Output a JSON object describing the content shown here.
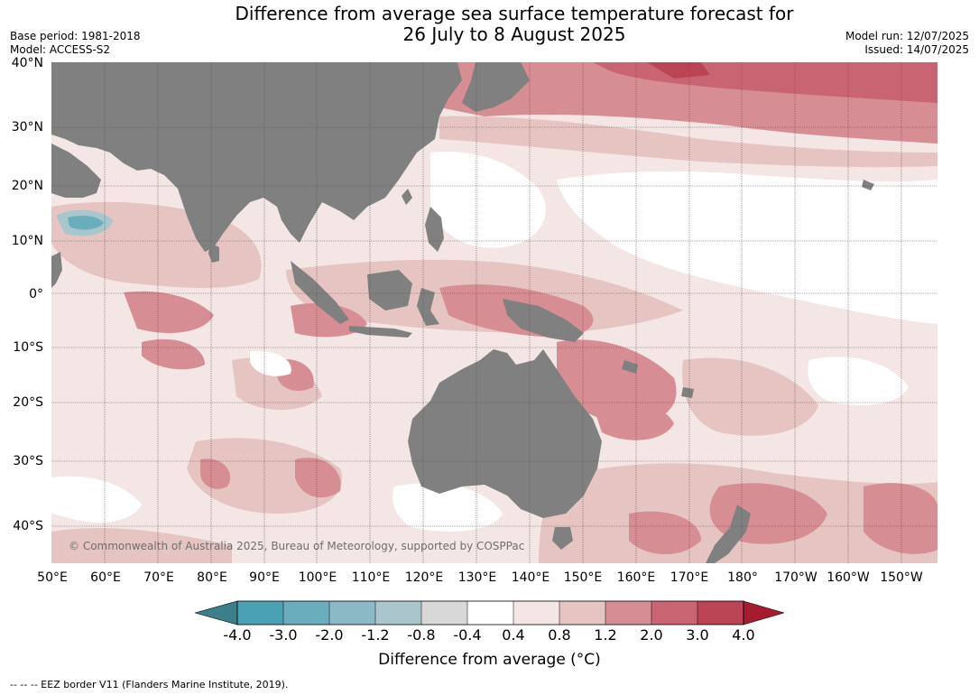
{
  "header": {
    "title_line1": "Difference from average sea surface temperature forecast for",
    "title_line2": "26 July to 8 August 2025",
    "base_period": "Base period: 1981-2018",
    "model": "Model: ACCESS-S2",
    "model_run": "Model run: 12/07/2025",
    "issued": "Issued: 14/07/2025"
  },
  "map": {
    "lat_labels": [
      "40°N",
      "30°N",
      "20°N",
      "10°N",
      "0°",
      "10°S",
      "20°S",
      "30°S",
      "40°S"
    ],
    "lon_labels": [
      "50°E",
      "60°E",
      "70°E",
      "80°E",
      "90°E",
      "100°E",
      "110°E",
      "120°E",
      "130°E",
      "140°E",
      "150°E",
      "160°E",
      "170°E",
      "180°",
      "170°W",
      "160°W",
      "150°W"
    ],
    "copyright": "© Commonwealth of Australia 2025, Bureau of Meteorology, supported by COSPPac",
    "colors": {
      "land": "#808080",
      "ocean_neutral": "#ffffff",
      "warm_1": "#f4e6e5",
      "warm_2": "#e6c4c2",
      "warm_3": "#d78d94",
      "warm_4": "#c96472",
      "warm_5": "#bb4454",
      "cool_1": "#a8c6cc",
      "cool_2": "#6aaebd"
    }
  },
  "colorbar": {
    "ticks": [
      "-4.0",
      "-3.0",
      "-2.0",
      "-1.2",
      "-0.8",
      "-0.4",
      "0.4",
      "0.8",
      "1.2",
      "2.0",
      "3.0",
      "4.0"
    ],
    "colors": [
      "#4aa1b3",
      "#6aaebd",
      "#8bb9c6",
      "#aac6cc",
      "#d8d8d8",
      "#ffffff",
      "#f4e6e5",
      "#e6c4c2",
      "#d78d94",
      "#c96472",
      "#bb4454"
    ],
    "low_extend_color": "#3b7f8a",
    "high_extend_color": "#a51c30",
    "label": "Difference from average (°C)"
  },
  "footnote": "--  --  -- EEZ border V11 (Flanders Marine Institute, 2019)."
}
